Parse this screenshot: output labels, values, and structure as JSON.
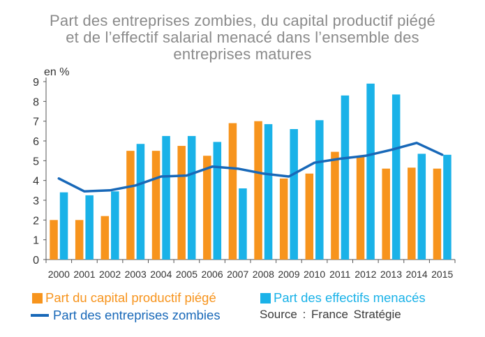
{
  "chart_data": {
    "type": "bar",
    "title_lines": [
      "Part des entreprises zombies, du capital productif piégé",
      "et de l’effectif salarial menacé dans l’ensemble des",
      "entreprises matures"
    ],
    "ylabel": "en %",
    "ylim": [
      0,
      9
    ],
    "yticks": [
      "0",
      "1",
      "2",
      "3",
      "4",
      "5",
      "6",
      "7",
      "8",
      "9"
    ],
    "categories": [
      "2000",
      "2001",
      "2002",
      "2003",
      "2004",
      "2005",
      "2006",
      "2007",
      "2008",
      "2009",
      "2010",
      "2011",
      "2012",
      "2013",
      "2014",
      "2015"
    ],
    "series": [
      {
        "name": "Part du capital productif piégé",
        "kind": "bar",
        "color": "#f7941d",
        "values": [
          2.0,
          2.0,
          2.2,
          5.5,
          5.5,
          5.75,
          5.25,
          6.9,
          7.0,
          4.1,
          4.35,
          5.45,
          5.2,
          4.6,
          4.65,
          4.6
        ]
      },
      {
        "name": "Part des effectifs menacés",
        "kind": "bar",
        "color": "#1ab2e8",
        "values": [
          3.4,
          3.25,
          3.45,
          5.85,
          6.25,
          6.25,
          5.95,
          3.6,
          6.85,
          6.6,
          7.05,
          8.3,
          8.9,
          8.35,
          5.35,
          5.3
        ]
      },
      {
        "name": "Part des entreprises zombies",
        "kind": "line",
        "color": "#1868b8",
        "values": [
          4.1,
          3.45,
          3.5,
          3.75,
          4.2,
          4.25,
          4.7,
          4.6,
          4.35,
          4.2,
          4.9,
          5.1,
          5.25,
          5.55,
          5.9,
          5.3
        ]
      }
    ],
    "grid": false,
    "legend": "bottom",
    "source": "Source : France Stratégie"
  }
}
